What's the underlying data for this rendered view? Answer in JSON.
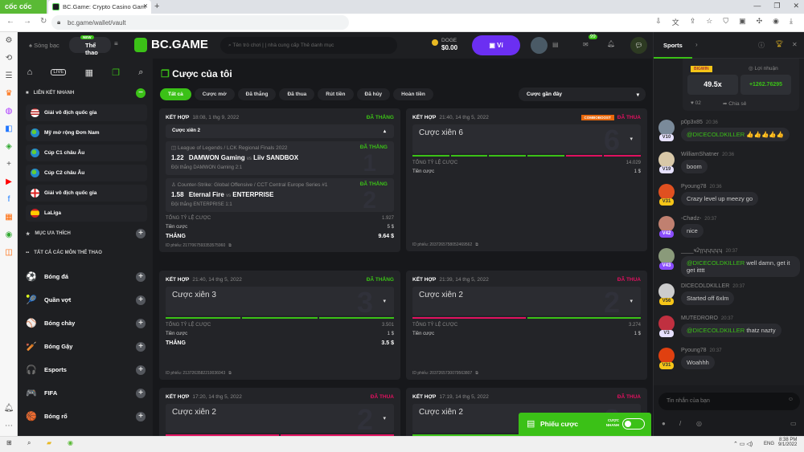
{
  "browser": {
    "brand": "cốc cốc",
    "tab_title": "BC.Game: Crypto Casino Gam",
    "url": "bc.game/wallet/vault"
  },
  "header": {
    "casino": "Sòng bạc",
    "sports": "Thể thao",
    "new_badge": "NEW",
    "logo": "BC.GAME",
    "search_placeholder": "Tên trò chơi | | nhà cung cấp Thẻ danh mục",
    "currency": "DOGE",
    "balance": "$0.00",
    "wallet": "Ví",
    "mail_count": "99"
  },
  "leftnav": {
    "quick_links_title": "LIÊN KẾT NHANH",
    "quick_links": [
      {
        "label": "Giải vô địch quốc gia",
        "flag": "us"
      },
      {
        "label": "Mỹ mở rộng Đơn Nam",
        "flag": "world"
      },
      {
        "label": "Cúp C1 châu Âu",
        "flag": "world"
      },
      {
        "label": "Cúp C2 châu Âu",
        "flag": "world"
      },
      {
        "label": "Giải vô địch quốc gia",
        "flag": "england"
      },
      {
        "label": "LaLiga",
        "flag": "spain"
      }
    ],
    "favorites_title": "MỤC ƯA THÍCH",
    "all_sports_title": "TẤT CẢ CÁC MÔN THỂ THAO",
    "sports": [
      {
        "label": "Bóng đá",
        "icon": "⚽"
      },
      {
        "label": "Quần vợt",
        "icon": "🎾"
      },
      {
        "label": "Bóng chày",
        "icon": "⚾"
      },
      {
        "label": "Bóng Gậy",
        "icon": "🏏"
      },
      {
        "label": "Esports",
        "icon": "🎧"
      },
      {
        "label": "FIFA",
        "icon": "🎮"
      },
      {
        "label": "Bóng rổ",
        "icon": "🏀"
      }
    ]
  },
  "main": {
    "title": "Cược của tôi",
    "filters": [
      "Tất cả",
      "Cược mở",
      "Đã thắng",
      "Đã thua",
      "Rút tiền",
      "Đã hủy",
      "Hoàn tiền"
    ],
    "sort": "Cược gần đây",
    "labels": {
      "combo": "KẾT HỢP",
      "total_odds": "TỔNG TỶ LỆ CƯỢC",
      "stake": "Tiền cược",
      "win": "THẮNG",
      "ticket_id": "ID phiếu:"
    },
    "cards": [
      {
        "date": "18:08, 1 thg 9, 2022",
        "status": "ĐÃ THẮNG",
        "won": true,
        "combo": "Cược xiên 2",
        "count": "2",
        "total_odds": "1.927",
        "stake": "5 $",
        "payout": "9.64 $",
        "ticket": "2177067593353575960",
        "legs": [
          {
            "num": "1",
            "league": "League of Legends / LCK Regional Finals 2022",
            "odds": "1.22",
            "home": "DAMWON Gaming",
            "vs": "vs",
            "away": "Liiv SANDBOX",
            "pick": "Đội thắng DAMWON Gaming",
            "score": "2:1",
            "status": "ĐÃ THẮNG"
          },
          {
            "num": "2",
            "league": "Counter-Strike: Global Offensive / CCT Central Europe Series #1",
            "odds": "1.58",
            "home": "Eternal Fire",
            "vs": "vs",
            "away": "ENTERPRISE",
            "pick": "Đội thắng ENTERPRISE",
            "score": "1:1",
            "status": "ĐÃ THẮNG"
          }
        ]
      },
      {
        "date": "21:40, 14 thg 5, 2022",
        "status": "ĐÃ THUA",
        "won": false,
        "boost": "COMBOBOOST",
        "combo": "Cược xiên 6",
        "count": "6",
        "total_odds": "14.029",
        "stake": "1 $",
        "ticket": "2037265758052469562",
        "legs_result": [
          "w",
          "w",
          "w",
          "w",
          "l",
          "l"
        ]
      },
      {
        "date": "21:40, 14 thg 5, 2022",
        "status": "ĐÃ THẮNG",
        "won": true,
        "combo": "Cược xiên 3",
        "count": "3",
        "total_odds": "3.501",
        "stake": "1 $",
        "payout": "3.5 $",
        "ticket": "2137263582210036043",
        "legs_result": [
          "w",
          "w",
          "w"
        ]
      },
      {
        "date": "21:39, 14 thg 5, 2022",
        "status": "ĐÃ THUA",
        "won": false,
        "combo": "Cược xiên 2",
        "count": "2",
        "total_odds": "3.274",
        "stake": "1 $",
        "ticket": "2037265730079563807",
        "legs_result": [
          "l",
          "w"
        ]
      },
      {
        "date": "17:20, 14 thg 5, 2022",
        "status": "ĐÃ THUA",
        "won": false,
        "combo": "Cược xiên 2",
        "count": "2",
        "total_odds": "3.806",
        "legs_result": [
          "l",
          "l"
        ]
      },
      {
        "date": "17:19, 14 thg 5, 2022",
        "status": "ĐÃ THUA",
        "won": false,
        "combo": "Cược xiên 2",
        "count": "2",
        "legs_result": [
          "w",
          "l"
        ]
      }
    ]
  },
  "betslip": {
    "label": "Phiếu cược",
    "quick_bet": "CƯỢC NHANH"
  },
  "chat": {
    "tab": "Sports",
    "bigwin": "BIGWIN",
    "profit_label": "Lợi nhuận",
    "multiplier": "49.5x",
    "profit": "+1262.76295",
    "likes": "02",
    "share": "Chia sẻ",
    "input_placeholder": "Tin nhắn của bạn",
    "messages": [
      {
        "user": "p0p3x85",
        "time": "20:36",
        "level": "V10",
        "mention": "@DICECOLDKILLER",
        "text": "👍👍👍👍👍",
        "badge": "#e6e1ff"
      },
      {
        "user": "WilliamShatner",
        "time": "20:36",
        "level": "V19",
        "text": "boom",
        "badge": "#e6e1ff"
      },
      {
        "user": "Pyoung78",
        "time": "20:36",
        "level": "V31",
        "text": "Crazy level up meezy go",
        "badge": "#f5c518"
      },
      {
        "user": "-Chødz-",
        "time": "20:37",
        "level": "V42",
        "text": "nice",
        "badge": "#8a4dff"
      },
      {
        "user": "____ҹʡɿɿʮʮʮʮʮ",
        "time": "20:37",
        "level": "V43",
        "mention": "@DICECOLDKILLER",
        "text": "well damn, get it get itttt",
        "badge": "#8a4dff"
      },
      {
        "user": "DICECOLDKILLER",
        "time": "20:37",
        "level": "V56",
        "text": "Started off 6xlm",
        "badge": "#f5c518"
      },
      {
        "user": "MUTEDRORO",
        "time": "20:37",
        "level": "V3",
        "mention": "@DICECOLDKILLER",
        "text": "thatz nazty",
        "badge": "#e6e1ff"
      },
      {
        "user": "Pyoung78",
        "time": "20:37",
        "level": "V31",
        "text": "Woahhh",
        "badge": "#f5c518"
      }
    ]
  },
  "taskbar": {
    "lang": "ENG",
    "time": "8:38 PM",
    "date": "9/1/2022"
  },
  "colors": {
    "green": "#3bc117",
    "red": "#e0115f",
    "purple": "#6b2ff2"
  }
}
